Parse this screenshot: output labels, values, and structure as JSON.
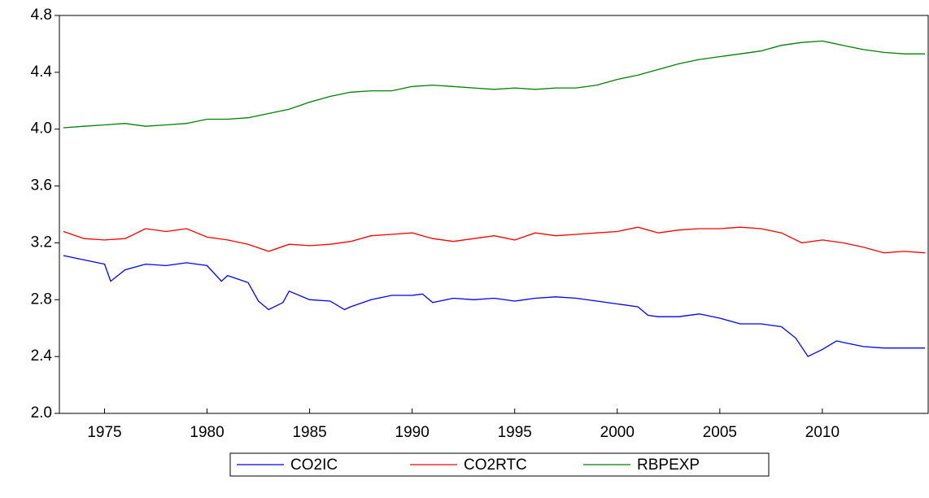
{
  "chart_data": {
    "type": "line",
    "xlim": [
      1972.8,
      2015.2
    ],
    "xticks": [
      1975,
      1980,
      1985,
      1990,
      1995,
      2000,
      2005,
      2010
    ],
    "ylim": [
      2.0,
      4.8
    ],
    "yticks": [
      {
        "value": 2.0,
        "label": "2.0"
      },
      2.4,
      2.8,
      3.2,
      3.6,
      {
        "value": 4.0,
        "label": "4.0"
      },
      4.4,
      4.8
    ],
    "legend": "bottom",
    "series": [
      {
        "name": "CO2IC",
        "color": "#0000ff",
        "x": [
          1973,
          1974,
          1975,
          1975.3,
          1976,
          1977,
          1978,
          1979,
          1980,
          1980.7,
          1981,
          1982,
          1982.5,
          1983,
          1983.7,
          1984,
          1985,
          1986,
          1986.7,
          1987,
          1988,
          1989,
          1990,
          1990.5,
          1991,
          1992,
          1993,
          1994,
          1995,
          1996,
          1997,
          1998,
          1999,
          2000,
          2001,
          2001.5,
          2002,
          2003,
          2004,
          2005,
          2006,
          2007,
          2008,
          2008.7,
          2009.3,
          2010,
          2010.7,
          2011,
          2012,
          2013,
          2014,
          2015
        ],
        "values": [
          3.11,
          3.08,
          3.05,
          2.93,
          3.01,
          3.05,
          3.04,
          3.06,
          3.04,
          2.93,
          2.97,
          2.92,
          2.79,
          2.73,
          2.78,
          2.86,
          2.8,
          2.79,
          2.73,
          2.75,
          2.8,
          2.83,
          2.83,
          2.84,
          2.78,
          2.81,
          2.8,
          2.81,
          2.79,
          2.81,
          2.82,
          2.81,
          2.79,
          2.77,
          2.75,
          2.69,
          2.68,
          2.68,
          2.7,
          2.67,
          2.63,
          2.63,
          2.61,
          2.53,
          2.4,
          2.45,
          2.51,
          2.5,
          2.47,
          2.46,
          2.46,
          2.46
        ]
      },
      {
        "name": "CO2RTC",
        "color": "#ff0000",
        "x": [
          1973,
          1974,
          1975,
          1976,
          1977,
          1978,
          1979,
          1980,
          1981,
          1982,
          1983,
          1984,
          1985,
          1986,
          1987,
          1988,
          1989,
          1990,
          1991,
          1992,
          1993,
          1994,
          1995,
          1996,
          1997,
          1998,
          1999,
          2000,
          2001,
          2002,
          2003,
          2004,
          2005,
          2006,
          2007,
          2008,
          2009,
          2010,
          2011,
          2012,
          2013,
          2014,
          2015
        ],
        "values": [
          3.28,
          3.23,
          3.22,
          3.23,
          3.3,
          3.28,
          3.3,
          3.24,
          3.22,
          3.19,
          3.14,
          3.19,
          3.18,
          3.19,
          3.21,
          3.25,
          3.26,
          3.27,
          3.23,
          3.21,
          3.23,
          3.25,
          3.22,
          3.27,
          3.25,
          3.26,
          3.27,
          3.28,
          3.31,
          3.27,
          3.29,
          3.3,
          3.3,
          3.31,
          3.3,
          3.27,
          3.2,
          3.22,
          3.2,
          3.17,
          3.13,
          3.14,
          3.13
        ]
      },
      {
        "name": "RBPEXP",
        "color": "#008000",
        "x": [
          1973,
          1974,
          1975,
          1976,
          1977,
          1978,
          1979,
          1980,
          1981,
          1982,
          1983,
          1984,
          1985,
          1986,
          1987,
          1988,
          1989,
          1990,
          1991,
          1992,
          1993,
          1994,
          1995,
          1996,
          1997,
          1998,
          1999,
          2000,
          2001,
          2002,
          2003,
          2004,
          2005,
          2006,
          2007,
          2008,
          2009,
          2010,
          2011,
          2012,
          2013,
          2014,
          2015
        ],
        "values": [
          4.01,
          4.02,
          4.03,
          4.04,
          4.02,
          4.03,
          4.04,
          4.07,
          4.07,
          4.08,
          4.11,
          4.14,
          4.19,
          4.23,
          4.26,
          4.27,
          4.27,
          4.3,
          4.31,
          4.3,
          4.29,
          4.28,
          4.29,
          4.28,
          4.29,
          4.29,
          4.31,
          4.35,
          4.38,
          4.42,
          4.46,
          4.49,
          4.51,
          4.53,
          4.55,
          4.59,
          4.61,
          4.62,
          4.59,
          4.56,
          4.54,
          4.53,
          4.53
        ]
      }
    ]
  }
}
